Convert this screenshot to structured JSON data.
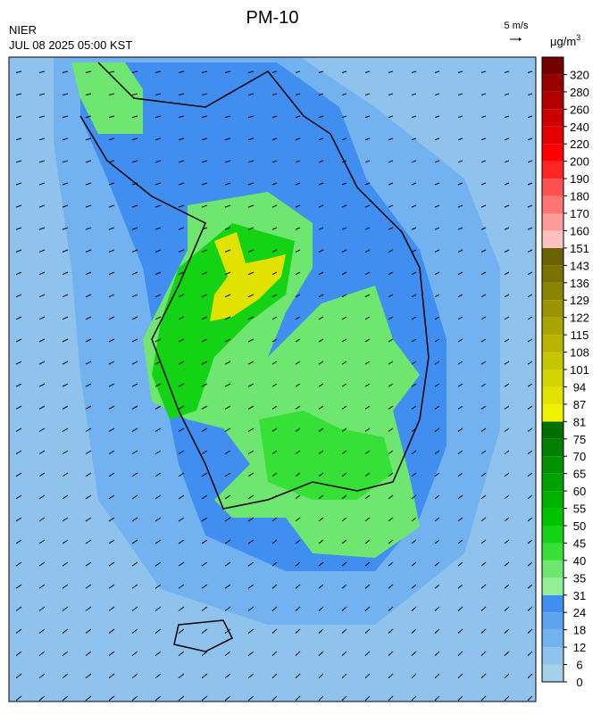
{
  "header": {
    "title": "PM-10",
    "source": "NIER",
    "datetime": "JUL 08 2025 05:00 KST",
    "wind_scale": "5 m/s"
  },
  "colorbar": {
    "unit": "μg/m",
    "unit_sup": "3",
    "ticks": [
      0,
      6,
      12,
      18,
      24,
      31,
      35,
      40,
      45,
      50,
      55,
      60,
      65,
      70,
      75,
      81,
      87,
      94,
      101,
      108,
      115,
      122,
      129,
      136,
      143,
      151,
      160,
      170,
      180,
      190,
      200,
      220,
      240,
      260,
      280,
      320
    ],
    "colors": [
      "#a6cfe9",
      "#8fc2ec",
      "#72b2f0",
      "#5ca3f0",
      "#3f8ef0",
      "#92f092",
      "#6fe66f",
      "#36e036",
      "#14d214",
      "#00c200",
      "#00b200",
      "#00a200",
      "#009200",
      "#008200",
      "#006e00",
      "#f0f000",
      "#e2e200",
      "#d4d400",
      "#c6c600",
      "#b8b400",
      "#aaa400",
      "#9a9400",
      "#8a8400",
      "#7a7200",
      "#6a6200",
      "#ffc0c0",
      "#ff9a9a",
      "#ff7474",
      "#ff5050",
      "#ff2424",
      "#ff0000",
      "#e20000",
      "#ca0000",
      "#b20000",
      "#9a0000",
      "#740000"
    ]
  }
}
